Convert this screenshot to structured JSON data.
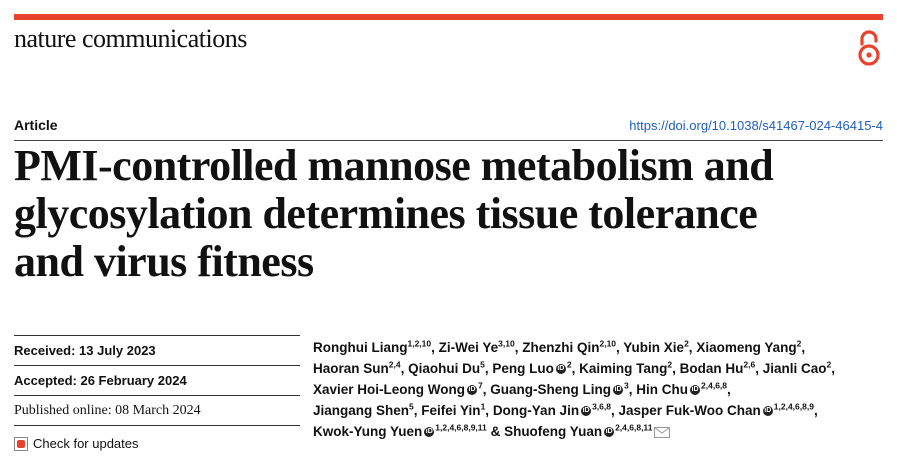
{
  "journal": "nature communications",
  "article_type": "Article",
  "doi": "https://doi.org/10.1038/s41467-024-46415-4",
  "title_lines": [
    "PMI-controlled mannose metabolism and",
    "glycosylation determines tissue tolerance",
    "and virus fitness"
  ],
  "dates": {
    "received": "Received: 13 July 2023",
    "accepted": "Accepted: 26 February 2024",
    "published": "Published online: 08 March 2024",
    "check_updates": "Check for updates"
  },
  "authors": [
    {
      "name": "Ronghui Liang",
      "sup": "1,2,10",
      "orcid": false
    },
    {
      "name": "Zi-Wei Ye",
      "sup": "3,10",
      "orcid": false
    },
    {
      "name": "Zhenzhi Qin",
      "sup": "2,10",
      "orcid": false
    },
    {
      "name": "Yubin Xie",
      "sup": "2",
      "orcid": false
    },
    {
      "name": "Xiaomeng Yang",
      "sup": "2",
      "orcid": false
    },
    {
      "name": "Haoran Sun",
      "sup": "2,4",
      "orcid": false
    },
    {
      "name": "Qiaohui Du",
      "sup": "5",
      "orcid": false
    },
    {
      "name": "Peng Luo",
      "sup": "2",
      "orcid": true
    },
    {
      "name": "Kaiming Tang",
      "sup": "2",
      "orcid": false
    },
    {
      "name": "Bodan Hu",
      "sup": "2,6",
      "orcid": false
    },
    {
      "name": "Jianli Cao",
      "sup": "2",
      "orcid": false
    },
    {
      "name": "Xavier Hoi-Leong Wong",
      "sup": "7",
      "orcid": true
    },
    {
      "name": "Guang-Sheng Ling",
      "sup": "3",
      "orcid": true
    },
    {
      "name": "Hin Chu",
      "sup": "2,4,6,8",
      "orcid": true
    },
    {
      "name": "Jiangang Shen",
      "sup": "5",
      "orcid": false
    },
    {
      "name": "Feifei Yin",
      "sup": "1",
      "orcid": false
    },
    {
      "name": "Dong-Yan Jin",
      "sup": "3,6,8",
      "orcid": true
    },
    {
      "name": "Jasper Fuk-Woo Chan",
      "sup": "1,2,4,6,8,9",
      "orcid": true
    },
    {
      "name": "Kwok-Yung Yuen",
      "sup": "1,2,4,6,8,9,11",
      "orcid": true
    },
    {
      "name": "Shuofeng Yuan",
      "sup": "2,4,6,8,11",
      "orcid": true
    }
  ],
  "author_lines": [
    [
      0,
      4
    ],
    [
      5,
      10
    ],
    [
      11,
      13
    ],
    [
      14,
      17
    ],
    [
      18,
      19
    ]
  ],
  "colors": {
    "accent": "#e8432f",
    "link": "#1f5fbf"
  },
  "icons": [
    "open-access-icon",
    "orcid-icon",
    "check-for-updates-icon",
    "email-icon"
  ]
}
